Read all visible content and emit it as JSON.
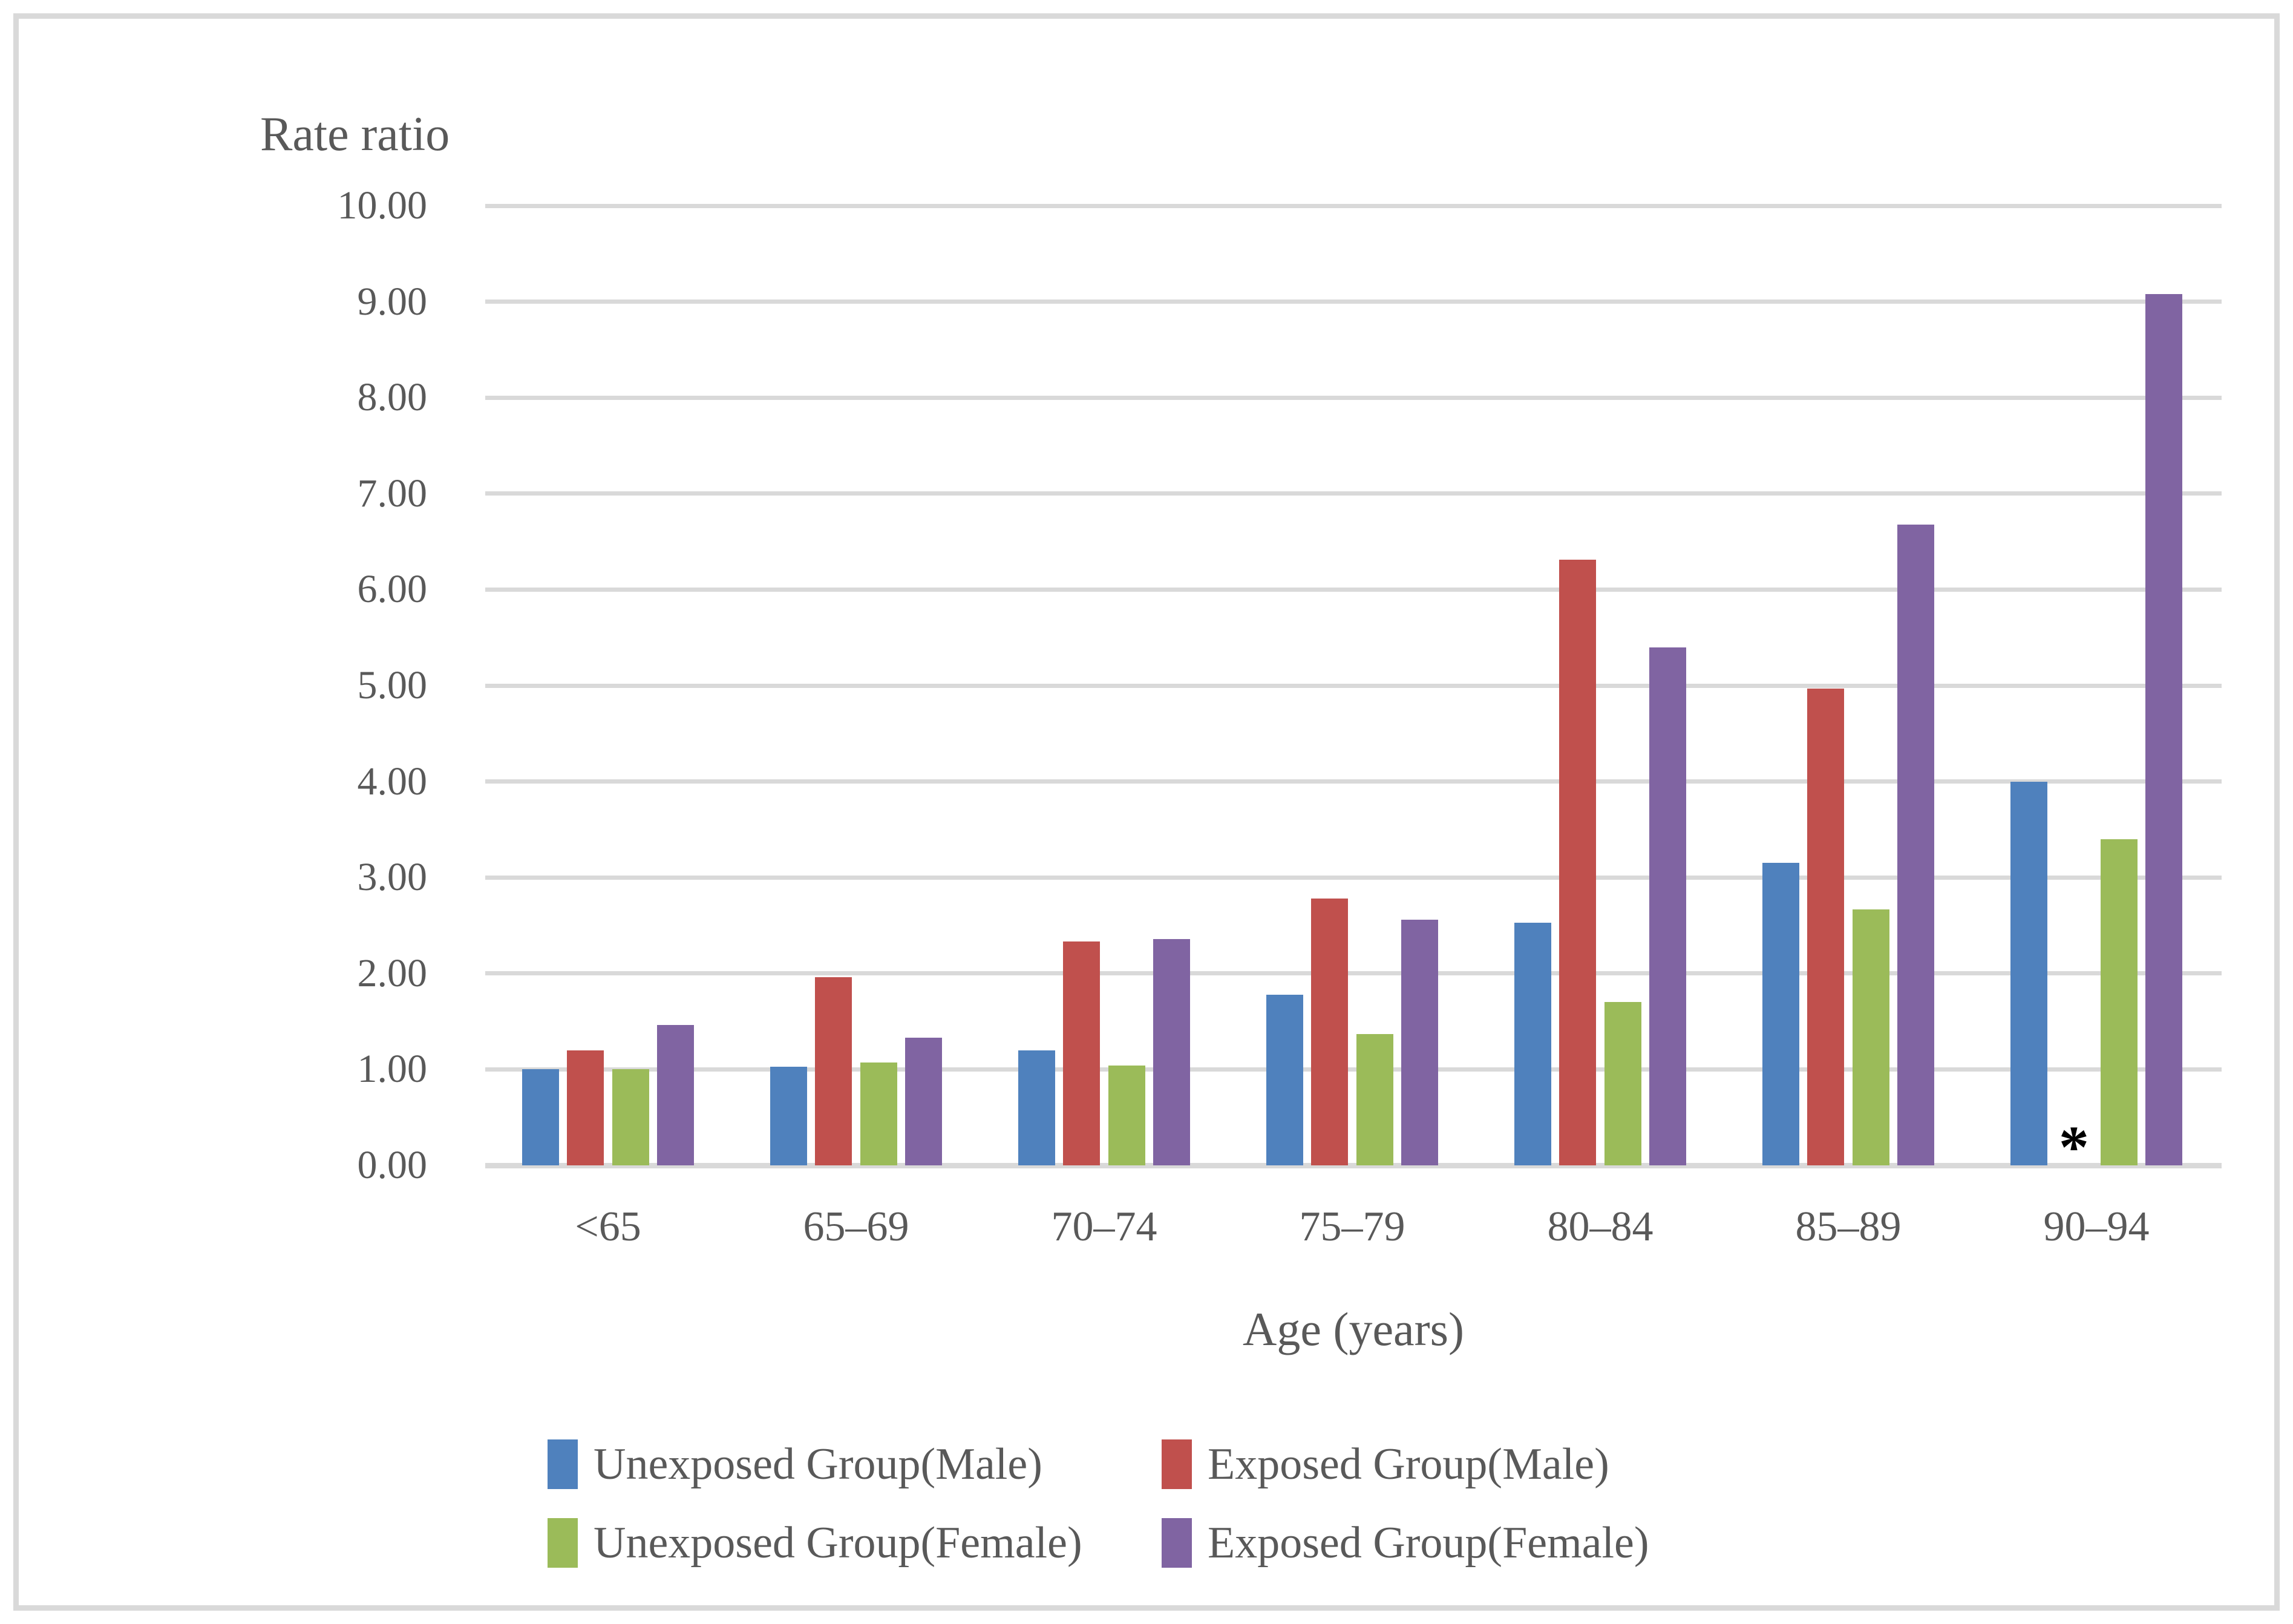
{
  "chart_data": {
    "type": "bar",
    "title": "Rate ratio",
    "xlabel": "Age (years)",
    "ylabel": "Rate ratio",
    "categories": [
      "<65",
      "65–69",
      "70–74",
      "75–79",
      "80–84",
      "85–89",
      "90–94"
    ],
    "series": [
      {
        "name": "Unexposed Group(Male)",
        "color": "#4F81BD",
        "values": [
          1.0,
          1.03,
          1.2,
          1.78,
          2.53,
          3.15,
          4.0
        ]
      },
      {
        "name": "Exposed Group(Male)",
        "color": "#C0504D",
        "values": [
          1.2,
          1.96,
          2.33,
          2.78,
          6.31,
          4.97,
          null
        ]
      },
      {
        "name": "Unexposed Group(Female)",
        "color": "#9BBB59",
        "values": [
          1.0,
          1.07,
          1.04,
          1.37,
          1.7,
          2.67,
          3.4
        ]
      },
      {
        "name": "Exposed Group(Female)",
        "color": "#8064A2",
        "values": [
          1.46,
          1.33,
          2.36,
          2.56,
          5.4,
          6.68,
          9.08
        ]
      }
    ],
    "ylim": [
      0,
      10
    ],
    "ytick_step": 1,
    "y_tick_labels": [
      "0.00",
      "1.00",
      "2.00",
      "3.00",
      "4.00",
      "5.00",
      "6.00",
      "7.00",
      "8.00",
      "9.00",
      "10.00"
    ],
    "grid": true,
    "legend_position": "bottom",
    "annotations": [
      {
        "text": "*",
        "category": "90–94",
        "series": "Exposed Group(Male)",
        "meaning": "value not shown for Exposed Group(Male) at 90–94"
      }
    ]
  },
  "colors": {
    "unexposed_male": "#4F81BD",
    "exposed_male": "#C0504D",
    "unexposed_female": "#9BBB59",
    "exposed_female": "#8064A2",
    "gridline": "#D9D9D9",
    "figure_border": "#D9D9D9",
    "text": "#595959",
    "annotation": "#000000"
  }
}
